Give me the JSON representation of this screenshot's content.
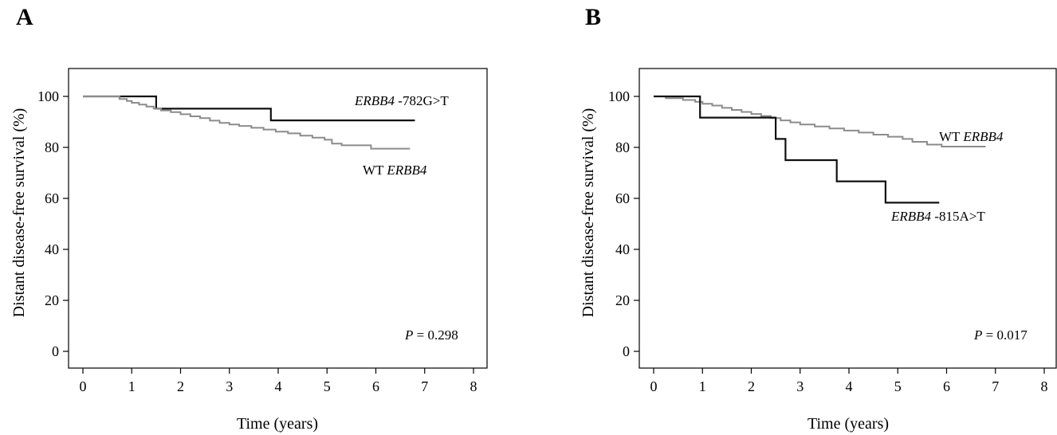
{
  "chart_data": [
    {
      "panel_label": "A",
      "type": "line",
      "step": true,
      "xlabel": "Time (years)",
      "ylabel": "Distant disease-free survival (%)",
      "xlim": [
        0,
        8
      ],
      "ylim": [
        0,
        100
      ],
      "xticks": [
        0,
        1,
        2,
        3,
        4,
        5,
        6,
        7,
        8
      ],
      "yticks": [
        0,
        20,
        40,
        60,
        80,
        100
      ],
      "grid": false,
      "series": [
        {
          "name": "ERBB4 -782G>T",
          "label_italic": "ERBB4",
          "label_plain": " -782G>T",
          "label_order": "italic-first",
          "color": "#111111",
          "x": [
            0,
            1.5,
            3.85,
            6.8
          ],
          "y": [
            100,
            95.2,
            90.6,
            90.6
          ]
        },
        {
          "name": "WT ERBB4",
          "label_plain": "WT ",
          "label_italic": "ERBB4",
          "label_order": "plain-first",
          "color": "#8c8c8c",
          "x": [
            0,
            0.75,
            0.9,
            1.0,
            1.15,
            1.3,
            1.45,
            1.6,
            1.8,
            2.0,
            2.2,
            2.4,
            2.6,
            2.8,
            3.0,
            3.2,
            3.45,
            3.7,
            3.95,
            4.2,
            4.45,
            4.7,
            4.95,
            5.1,
            5.3,
            5.5,
            5.9,
            6.7
          ],
          "y": [
            100,
            99,
            98.2,
            97.5,
            96.8,
            96,
            95.2,
            94.5,
            93.8,
            93,
            92.2,
            91.5,
            90.5,
            89.6,
            89,
            88.4,
            87.7,
            87,
            86.2,
            85.5,
            84.6,
            83.8,
            83,
            81.5,
            80.8,
            80.8,
            79.5,
            79.5
          ]
        }
      ],
      "annotation": {
        "italic": "P",
        "plain": " = 0.298"
      }
    },
    {
      "panel_label": "B",
      "type": "line",
      "step": true,
      "xlabel": "Time (years)",
      "ylabel": "Distant disease-free survival (%)",
      "xlim": [
        0,
        8
      ],
      "ylim": [
        0,
        100
      ],
      "xticks": [
        0,
        1,
        2,
        3,
        4,
        5,
        6,
        7,
        8
      ],
      "yticks": [
        0,
        20,
        40,
        60,
        80,
        100
      ],
      "grid": false,
      "series": [
        {
          "name": "WT ERBB4",
          "label_plain": "WT ",
          "label_italic": "ERBB4",
          "label_order": "plain-first",
          "color": "#8c8c8c",
          "x": [
            0,
            0.25,
            0.6,
            0.85,
            1.0,
            1.2,
            1.4,
            1.6,
            1.8,
            2.0,
            2.2,
            2.4,
            2.6,
            2.8,
            3.0,
            3.3,
            3.6,
            3.9,
            4.2,
            4.5,
            4.8,
            5.1,
            5.3,
            5.6,
            5.9,
            6.8
          ],
          "y": [
            100,
            99.3,
            98.6,
            97.9,
            97.1,
            96.4,
            95.5,
            94.7,
            93.9,
            93.1,
            92.3,
            91.5,
            90.6,
            89.8,
            89,
            88.2,
            87.4,
            86.6,
            85.8,
            85,
            84.2,
            83.3,
            82.2,
            81.1,
            80.3,
            80.3
          ]
        },
        {
          "name": "ERBB4 -815A>T",
          "label_italic": "ERBB4",
          "label_plain": " -815A>T",
          "label_order": "italic-first",
          "color": "#111111",
          "x": [
            0,
            0.95,
            2.5,
            2.7,
            3.75,
            4.75,
            5.85
          ],
          "y": [
            100,
            91.7,
            83.3,
            75,
            66.7,
            58.3,
            58.3
          ]
        }
      ],
      "annotation": {
        "italic": "P",
        "plain": " = 0.017"
      }
    }
  ]
}
